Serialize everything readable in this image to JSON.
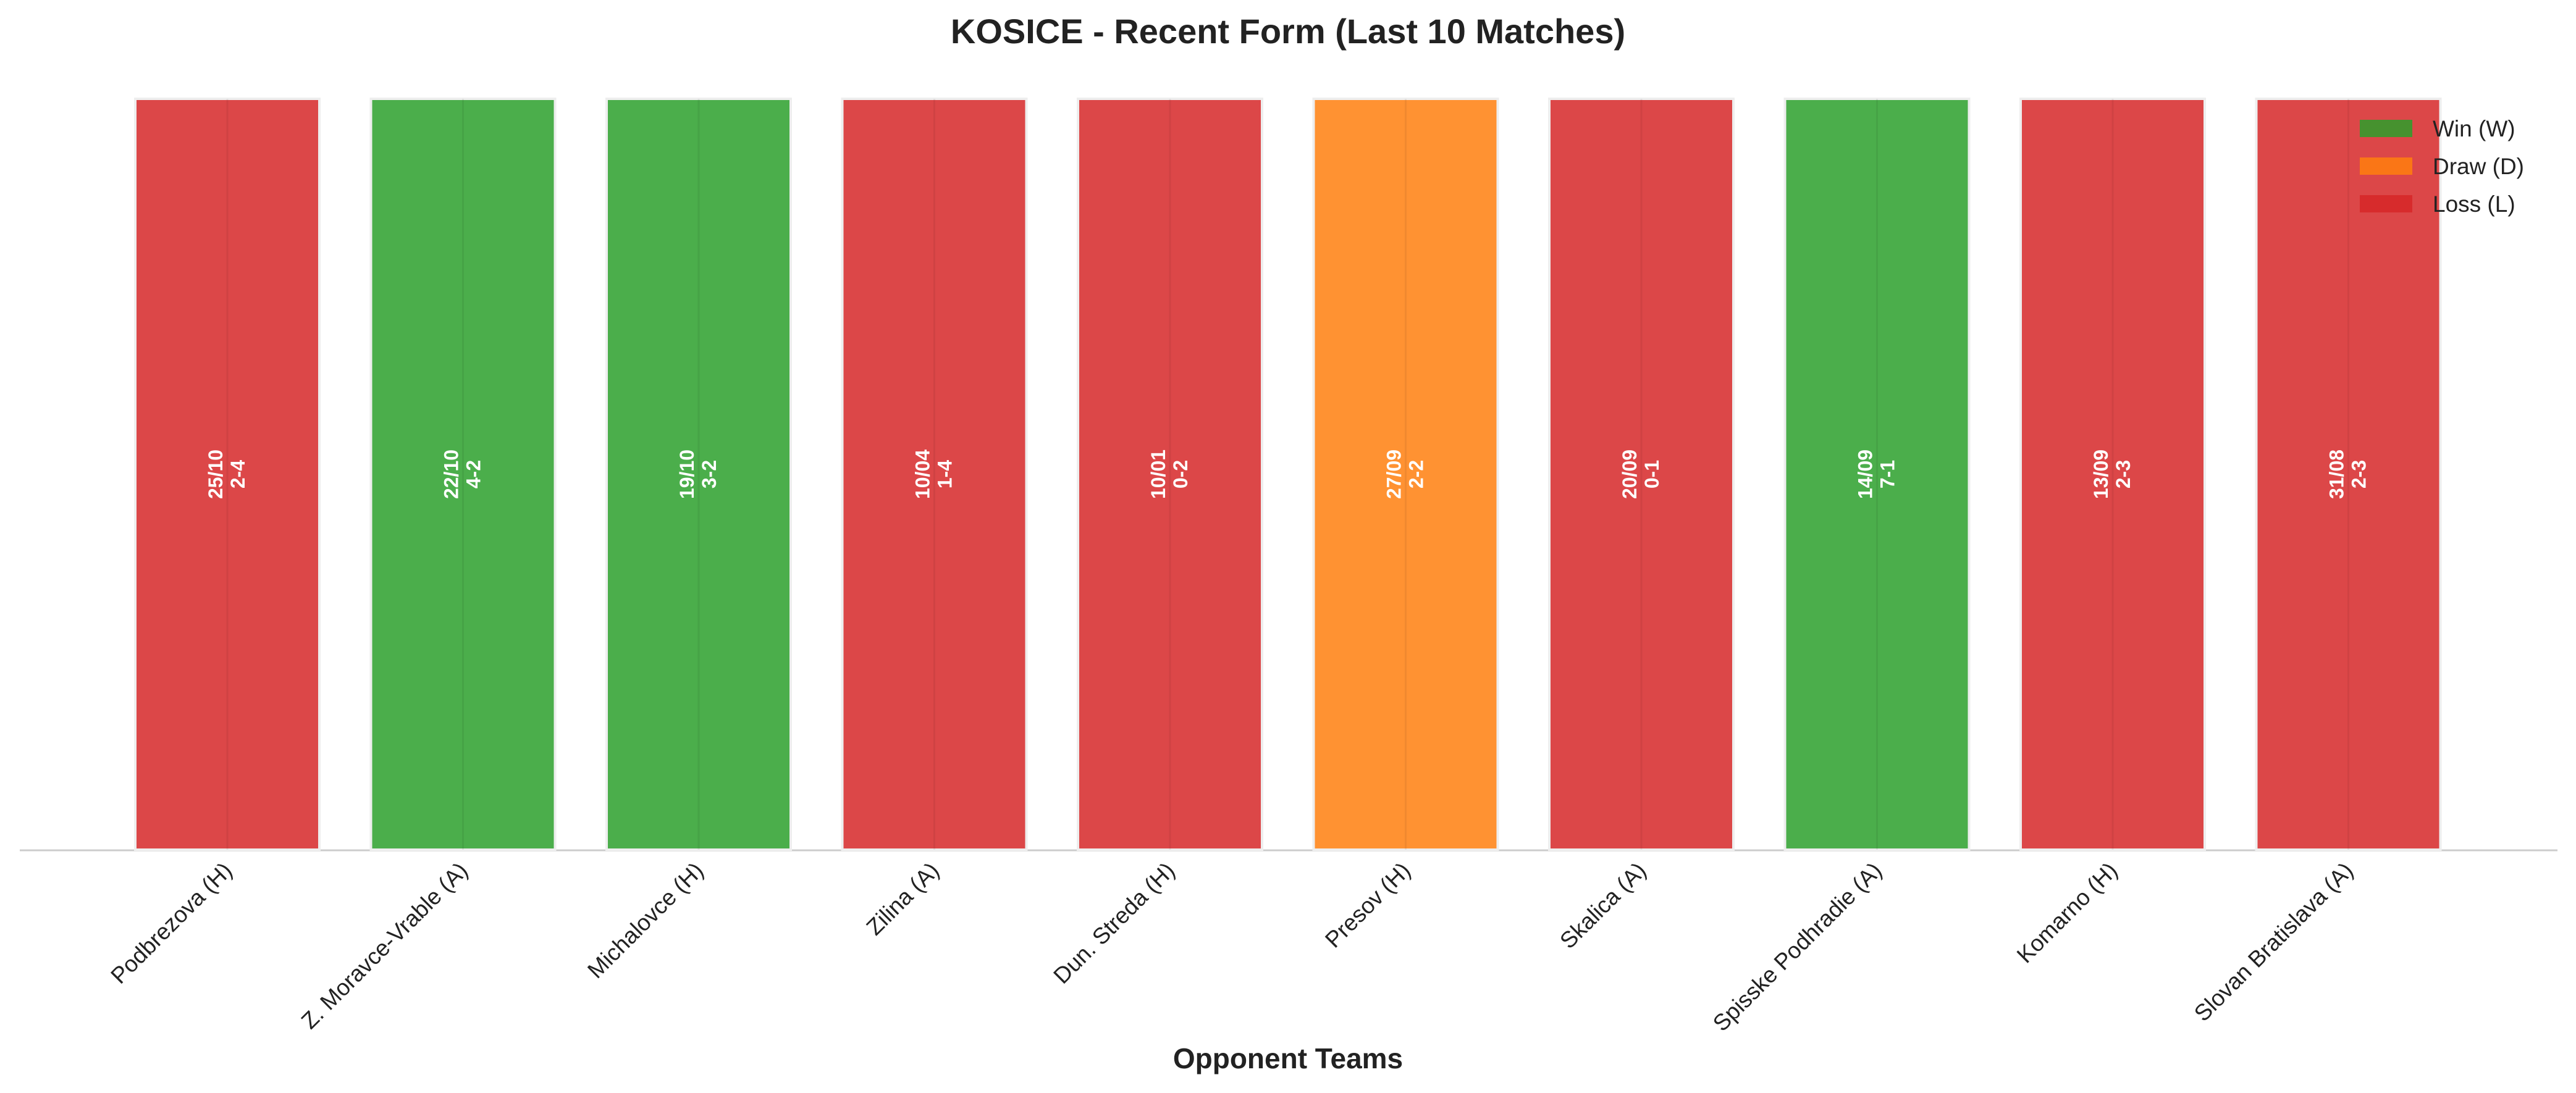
{
  "chart_data": {
    "type": "bar",
    "title": "KOSICE - Recent Form (Last 10 Matches)",
    "x_label": "Opponent Teams",
    "categories": [
      "Podbrezova (H)",
      "Z. Moravce-Vrable (A)",
      "Michalovce (H)",
      "Zilina (A)",
      "Dun. Streda (H)",
      "Presov (H)",
      "Skalica (A)",
      "Spisske Podhradie (A)",
      "Komarno (H)",
      "Slovan Bratislava (A)"
    ],
    "dates": [
      "25/10",
      "22/10",
      "19/10",
      "10/04",
      "10/01",
      "27/09",
      "20/09",
      "14/09",
      "13/09",
      "31/08"
    ],
    "scores": [
      "2-4",
      "4-2",
      "3-2",
      "1-4",
      "0-2",
      "2-2",
      "0-1",
      "7-1",
      "2-3",
      "2-3"
    ],
    "series": [
      {
        "name": "Win (W)",
        "color": "#2ca02c",
        "values": [
          null,
          1,
          1,
          null,
          null,
          null,
          null,
          1,
          null,
          null
        ]
      },
      {
        "name": "Draw (D)",
        "color": "#ff7f0e",
        "values": [
          null,
          null,
          null,
          null,
          null,
          1,
          null,
          null,
          null,
          null
        ]
      },
      {
        "name": "Loss (L)",
        "color": "#d62728",
        "values": [
          1,
          null,
          null,
          1,
          1,
          null,
          1,
          null,
          1,
          1
        ]
      }
    ],
    "ylim": [
      0,
      1
    ],
    "legend": "upper right"
  }
}
